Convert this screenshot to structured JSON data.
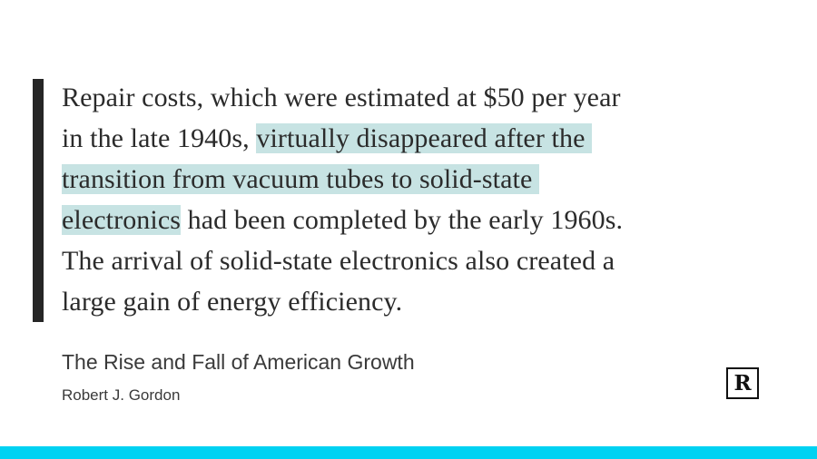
{
  "quote": {
    "line1": "Repair costs, which were estimated at $50 per year",
    "line2_plain": "in the late 1940s, ",
    "line2_highlight": "virtually disappeared after the",
    "line3_highlight": "transition from vacuum tubes to solid-state",
    "line4_highlight": "electronics",
    "line4_plain": " had been completed by the early 1960s.",
    "line5": "The arrival of solid-state electronics also created a",
    "line6": "large gain of energy efficiency."
  },
  "source": {
    "book_title": "The Rise and Fall of American Growth",
    "author": "Robert J. Gordon"
  },
  "logo": {
    "letter": "R"
  },
  "colors": {
    "highlight": "#c7e3e3",
    "accent_bar": "#00d2f2",
    "quote_bar": "#262626"
  }
}
